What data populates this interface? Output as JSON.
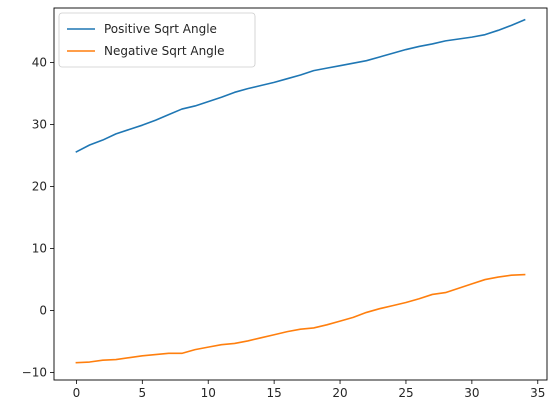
{
  "chart_data": {
    "type": "line",
    "title": "",
    "xlabel": "",
    "ylabel": "",
    "xlim": [
      -1.7,
      35.7
    ],
    "ylim": [
      -11.2,
      48.8
    ],
    "xticks": [
      0,
      5,
      10,
      15,
      20,
      25,
      30,
      35
    ],
    "yticks": [
      -10,
      0,
      10,
      20,
      30,
      40
    ],
    "grid": false,
    "legend_position": "top-left",
    "x": [
      0,
      1,
      2,
      3,
      4,
      5,
      6,
      7,
      8,
      9,
      10,
      11,
      12,
      13,
      14,
      15,
      16,
      17,
      18,
      19,
      20,
      21,
      22,
      23,
      24,
      25,
      26,
      27,
      28,
      29,
      30,
      31,
      32,
      33,
      34
    ],
    "series": [
      {
        "name": "Positive Sqrt Angle",
        "color": "#1f77b4",
        "values": [
          25.6,
          26.7,
          27.5,
          28.5,
          29.2,
          29.9,
          30.7,
          31.6,
          32.5,
          33.0,
          33.7,
          34.4,
          35.2,
          35.8,
          36.3,
          36.8,
          37.4,
          38.0,
          38.7,
          39.1,
          39.5,
          39.9,
          40.3,
          40.9,
          41.5,
          42.1,
          42.6,
          43.0,
          43.5,
          43.8,
          44.1,
          44.5,
          45.2,
          46.0,
          46.9
        ]
      },
      {
        "name": "Negative Sqrt Angle",
        "color": "#ff7f0e",
        "values": [
          -8.4,
          -8.3,
          -8.0,
          -7.9,
          -7.6,
          -7.3,
          -7.1,
          -6.9,
          -6.9,
          -6.3,
          -5.9,
          -5.5,
          -5.3,
          -4.9,
          -4.4,
          -3.9,
          -3.4,
          -3.0,
          -2.8,
          -2.3,
          -1.7,
          -1.1,
          -0.3,
          0.3,
          0.8,
          1.3,
          1.9,
          2.6,
          2.9,
          3.6,
          4.3,
          5.0,
          5.4,
          5.7,
          5.8
        ]
      }
    ]
  }
}
